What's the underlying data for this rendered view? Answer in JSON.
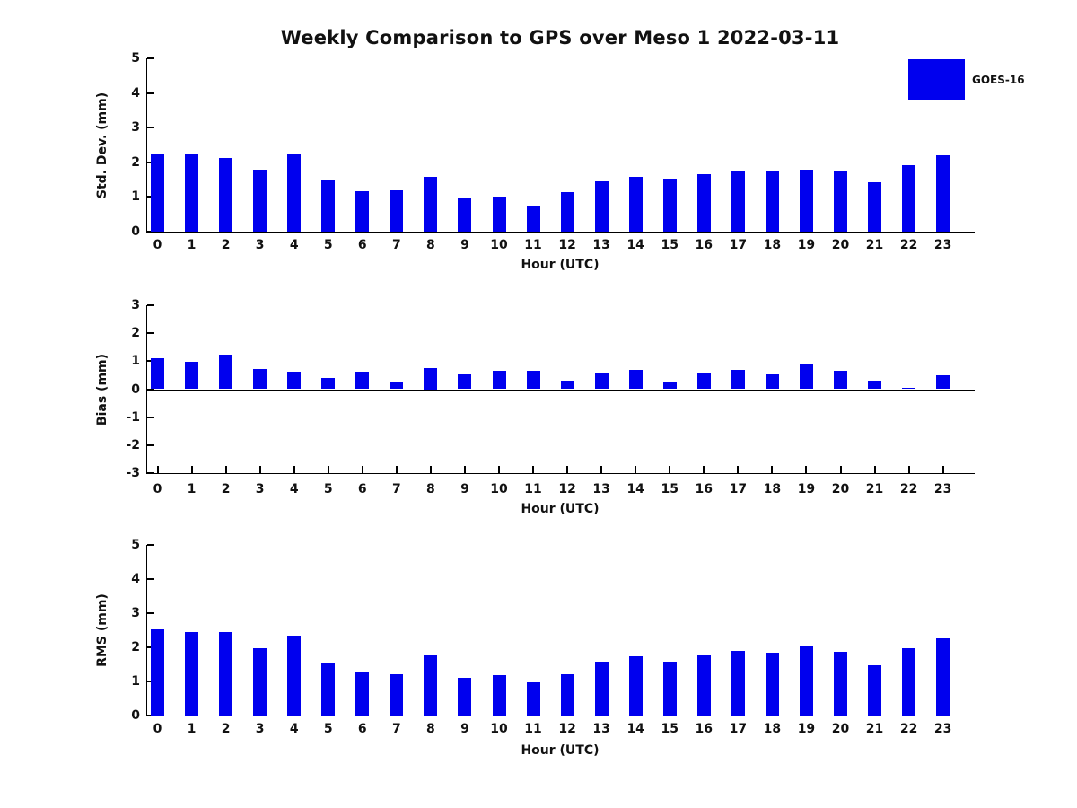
{
  "title": "Weekly Comparison to GPS over Meso 1 2022-03-11",
  "legend": {
    "label": "GOES-16",
    "color": "#0000EE"
  },
  "axis_color": "#000000",
  "chart_data": [
    {
      "type": "bar",
      "name": "std-dev",
      "title": "",
      "xlabel": "Hour (UTC)",
      "ylabel": "Std. Dev. (mm)",
      "ylim": [
        0,
        5
      ],
      "yticks": [
        0,
        1,
        2,
        3,
        4,
        5
      ],
      "grid": false,
      "legend_position": "upper-right-outside",
      "categories": [
        0,
        1,
        2,
        3,
        4,
        5,
        6,
        7,
        8,
        9,
        10,
        11,
        12,
        13,
        14,
        15,
        16,
        17,
        18,
        19,
        20,
        21,
        22,
        23
      ],
      "series": [
        {
          "name": "GOES-16",
          "color": "#0000EE",
          "values": [
            2.25,
            2.22,
            2.12,
            1.78,
            2.22,
            1.5,
            1.17,
            1.2,
            1.58,
            0.95,
            1.0,
            0.72,
            1.14,
            1.44,
            1.57,
            1.54,
            1.65,
            1.74,
            1.74,
            1.8,
            1.74,
            1.42,
            1.93,
            2.19
          ]
        }
      ]
    },
    {
      "type": "bar",
      "name": "bias",
      "title": "",
      "xlabel": "Hour (UTC)",
      "ylabel": "Bias (mm)",
      "ylim": [
        -3,
        3
      ],
      "yticks": [
        -3,
        -2,
        -1,
        0,
        1,
        2,
        3
      ],
      "grid": false,
      "categories": [
        0,
        1,
        2,
        3,
        4,
        5,
        6,
        7,
        8,
        9,
        10,
        11,
        12,
        13,
        14,
        15,
        16,
        17,
        18,
        19,
        20,
        21,
        22,
        23
      ],
      "series": [
        {
          "name": "GOES-16",
          "color": "#0000EE",
          "values": [
            1.1,
            0.98,
            1.23,
            0.73,
            0.61,
            0.39,
            0.61,
            0.23,
            0.75,
            0.53,
            0.65,
            0.65,
            0.3,
            0.6,
            0.68,
            0.24,
            0.55,
            0.68,
            0.52,
            0.88,
            0.67,
            0.3,
            0.04,
            0.51
          ]
        }
      ]
    },
    {
      "type": "bar",
      "name": "rms",
      "title": "",
      "xlabel": "Hour (UTC)",
      "ylabel": "RMS (mm)",
      "ylim": [
        0,
        5
      ],
      "yticks": [
        0,
        1,
        2,
        3,
        4,
        5
      ],
      "grid": false,
      "categories": [
        0,
        1,
        2,
        3,
        4,
        5,
        6,
        7,
        8,
        9,
        10,
        11,
        12,
        13,
        14,
        15,
        16,
        17,
        18,
        19,
        20,
        21,
        22,
        23
      ],
      "series": [
        {
          "name": "GOES-16",
          "color": "#0000EE",
          "values": [
            2.52,
            2.45,
            2.46,
            1.97,
            2.34,
            1.55,
            1.3,
            1.22,
            1.77,
            1.11,
            1.18,
            0.98,
            1.2,
            1.58,
            1.74,
            1.58,
            1.77,
            1.9,
            1.85,
            2.03,
            1.87,
            1.48,
            1.98,
            2.26
          ]
        }
      ]
    }
  ]
}
